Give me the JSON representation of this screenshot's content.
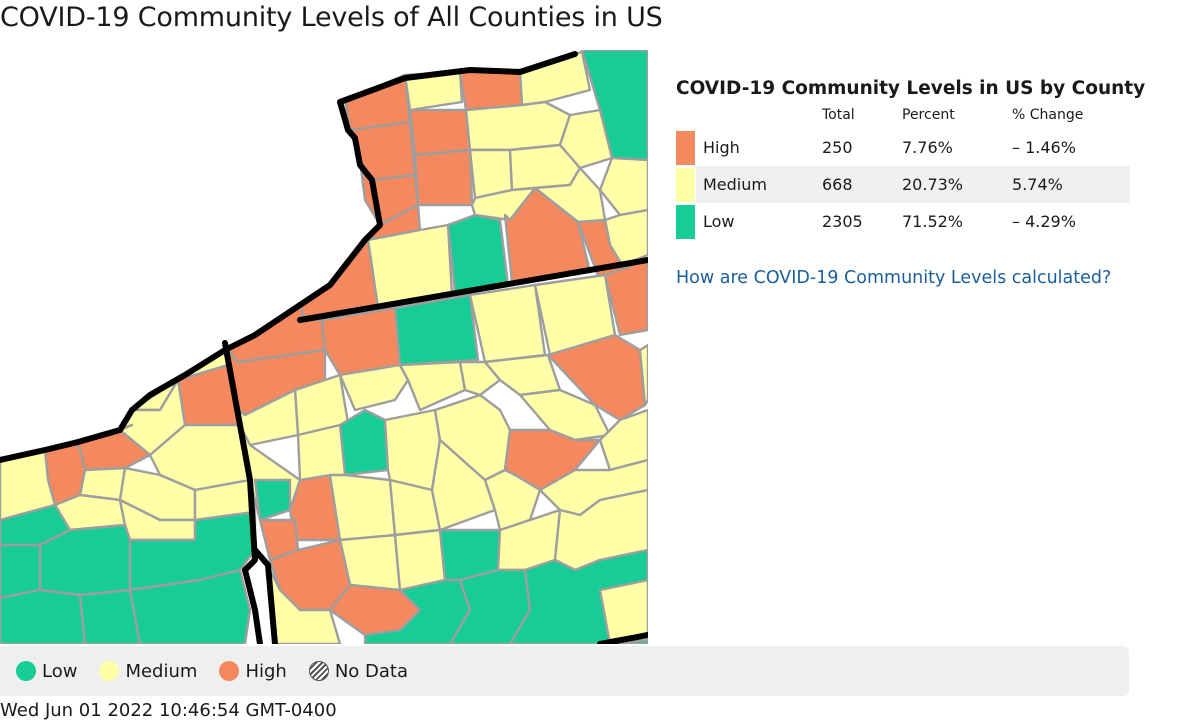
{
  "page": {
    "title": "COVID-19 Community Levels of All Counties in US",
    "timestamp": "Wed Jun 01 2022 10:46:54 GMT-0400"
  },
  "colors": {
    "high": "#f4895f",
    "medium": "#ffffa8",
    "low": "#17cc95",
    "border": "#9e9e9e",
    "state_border": "#000000",
    "link": "#1a5e9c"
  },
  "summary": {
    "title": "COVID-19 Community Levels in US by County",
    "columns": [
      "Total",
      "Percent",
      "% Change"
    ],
    "rows": [
      {
        "level": "High",
        "total": "250",
        "percent": "7.76%",
        "change": "– 1.46%"
      },
      {
        "level": "Medium",
        "total": "668",
        "percent": "20.73%",
        "change": "5.74%"
      },
      {
        "level": "Low",
        "total": "2305",
        "percent": "71.52%",
        "change": "– 4.29%"
      }
    ],
    "link_text": "How are COVID-19 Community Levels calculated?"
  },
  "legend": {
    "items": [
      {
        "label": "Low",
        "icon": "low-dot-icon"
      },
      {
        "label": "Medium",
        "icon": "medium-dot-icon"
      },
      {
        "label": "High",
        "icon": "high-dot-icon"
      },
      {
        "label": "No Data",
        "icon": "hatched-dot-icon"
      }
    ]
  }
}
